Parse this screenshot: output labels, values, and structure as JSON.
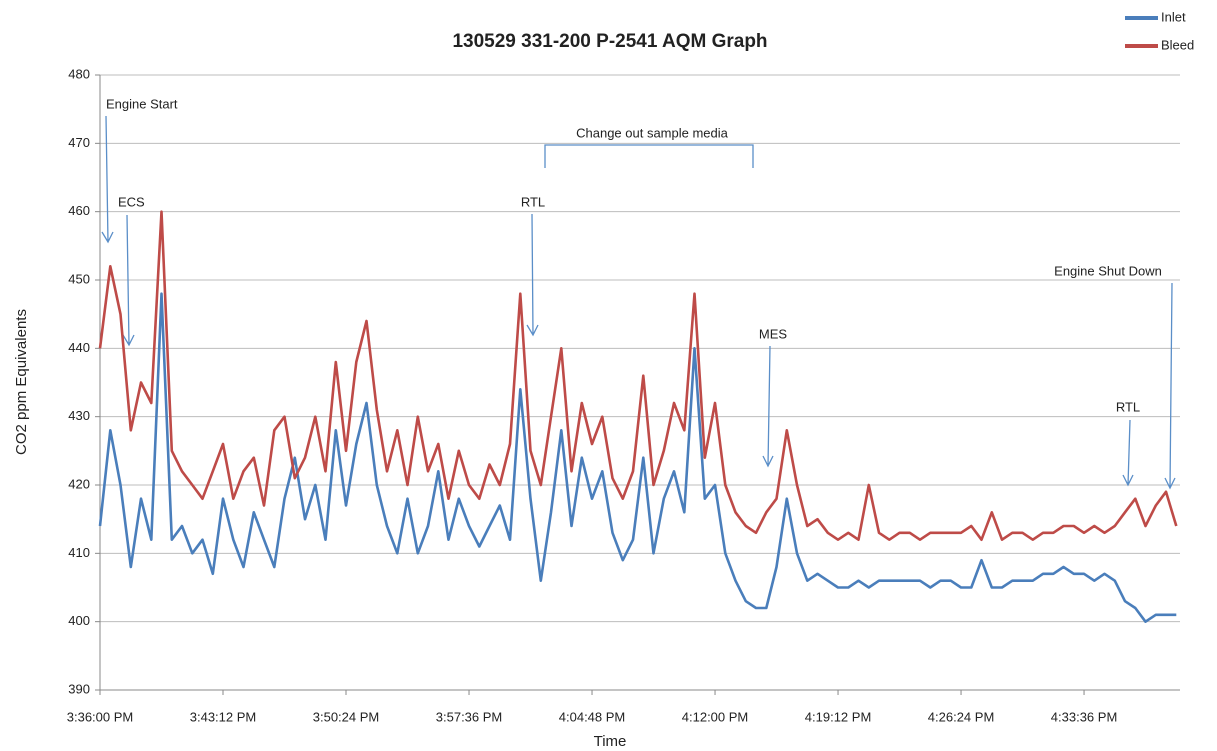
{
  "chart_data": {
    "type": "line",
    "title": "130529 331-200 P-2541 AQM Graph",
    "x_label": "Time",
    "y_label": "CO2 ppm Equivalents",
    "x": [
      "3:36:00 PM",
      "3:36:36 PM",
      "3:37:12 PM",
      "3:37:48 PM",
      "3:38:24 PM",
      "3:39:00 PM",
      "3:39:36 PM",
      "3:40:12 PM",
      "3:40:48 PM",
      "3:41:24 PM",
      "3:42:00 PM",
      "3:42:36 PM",
      "3:43:12 PM",
      "3:43:48 PM",
      "3:44:24 PM",
      "3:45:00 PM",
      "3:45:36 PM",
      "3:46:12 PM",
      "3:46:48 PM",
      "3:47:24 PM",
      "3:48:00 PM",
      "3:48:36 PM",
      "3:49:12 PM",
      "3:49:48 PM",
      "3:50:24 PM",
      "3:51:00 PM",
      "3:51:36 PM",
      "3:52:12 PM",
      "3:52:48 PM",
      "3:53:24 PM",
      "3:54:00 PM",
      "3:54:36 PM",
      "3:55:12 PM",
      "3:55:48 PM",
      "3:56:24 PM",
      "3:57:00 PM",
      "3:57:36 PM",
      "3:58:12 PM",
      "3:58:48 PM",
      "3:59:24 PM",
      "4:00:00 PM",
      "4:00:36 PM",
      "4:01:12 PM",
      "4:01:48 PM",
      "4:02:24 PM",
      "4:03:00 PM",
      "4:03:36 PM",
      "4:04:12 PM",
      "4:04:48 PM",
      "4:05:24 PM",
      "4:06:00 PM",
      "4:06:36 PM",
      "4:07:12 PM",
      "4:07:48 PM",
      "4:08:24 PM",
      "4:09:00 PM",
      "4:09:36 PM",
      "4:10:12 PM",
      "4:10:48 PM",
      "4:11:24 PM",
      "4:12:00 PM",
      "4:12:36 PM",
      "4:13:12 PM",
      "4:13:48 PM",
      "4:14:24 PM",
      "4:15:00 PM",
      "4:15:36 PM",
      "4:16:12 PM",
      "4:16:48 PM",
      "4:17:24 PM",
      "4:18:00 PM",
      "4:18:36 PM",
      "4:19:12 PM",
      "4:19:48 PM",
      "4:20:24 PM",
      "4:21:00 PM",
      "4:21:36 PM",
      "4:22:12 PM",
      "4:22:48 PM",
      "4:23:24 PM",
      "4:24:00 PM",
      "4:24:36 PM",
      "4:25:12 PM",
      "4:25:48 PM",
      "4:26:24 PM",
      "4:27:00 PM",
      "4:27:36 PM",
      "4:28:12 PM",
      "4:28:48 PM",
      "4:29:24 PM",
      "4:30:00 PM",
      "4:30:36 PM",
      "4:31:12 PM",
      "4:31:48 PM",
      "4:32:24 PM",
      "4:33:00 PM",
      "4:33:36 PM",
      "4:34:12 PM",
      "4:34:48 PM",
      "4:35:24 PM",
      "4:36:00 PM",
      "4:36:36 PM",
      "4:37:12 PM",
      "4:37:48 PM",
      "4:38:24 PM",
      "4:39:00 PM"
    ],
    "series": [
      {
        "name": "Inlet",
        "color": "#4a7ebb",
        "values": [
          414,
          428,
          420,
          408,
          418,
          412,
          448,
          412,
          414,
          410,
          412,
          407,
          418,
          412,
          408,
          416,
          412,
          408,
          418,
          424,
          415,
          420,
          412,
          428,
          417,
          426,
          432,
          420,
          414,
          410,
          418,
          410,
          414,
          422,
          412,
          418,
          414,
          411,
          414,
          417,
          412,
          434,
          418,
          406,
          416,
          428,
          414,
          424,
          418,
          422,
          413,
          409,
          412,
          424,
          410,
          418,
          422,
          416,
          440,
          418,
          420,
          410,
          406,
          403,
          402,
          402,
          408,
          418,
          410,
          406,
          407,
          406,
          405,
          405,
          406,
          405,
          406,
          406,
          406,
          406,
          406,
          405,
          406,
          406,
          405,
          405,
          409,
          405,
          405,
          406,
          406,
          406,
          407,
          407,
          408,
          407,
          407,
          406,
          407,
          406,
          403,
          402,
          400,
          401,
          401,
          401
        ]
      },
      {
        "name": "Bleed",
        "color": "#be4b48",
        "values": [
          440,
          452,
          445,
          428,
          435,
          432,
          460,
          425,
          422,
          420,
          418,
          422,
          426,
          418,
          422,
          424,
          417,
          428,
          430,
          421,
          424,
          430,
          422,
          438,
          425,
          438,
          444,
          431,
          422,
          428,
          420,
          430,
          422,
          426,
          418,
          425,
          420,
          418,
          423,
          420,
          426,
          448,
          425,
          420,
          430,
          440,
          422,
          432,
          426,
          430,
          421,
          418,
          422,
          436,
          420,
          425,
          432,
          428,
          448,
          424,
          432,
          420,
          416,
          414,
          413,
          416,
          418,
          428,
          420,
          414,
          415,
          413,
          412,
          413,
          412,
          420,
          413,
          412,
          413,
          413,
          412,
          413,
          413,
          413,
          413,
          414,
          412,
          416,
          412,
          413,
          413,
          412,
          413,
          413,
          414,
          414,
          413,
          414,
          413,
          414,
          416,
          418,
          414,
          417,
          419,
          414
        ]
      }
    ],
    "xlim": [
      "3:36:00 PM",
      "4:39:13 PM"
    ],
    "xticks": [
      "3:36:00 PM",
      "3:43:12 PM",
      "3:50:24 PM",
      "3:57:36 PM",
      "4:04:48 PM",
      "4:12:00 PM",
      "4:19:12 PM",
      "4:26:24 PM",
      "4:33:36 PM"
    ],
    "ylim": [
      390,
      480
    ],
    "yticks": [
      390,
      400,
      410,
      420,
      430,
      440,
      450,
      460,
      470,
      480
    ],
    "grid": true,
    "legend": "upper right",
    "annotations": [
      "Engine Start",
      "ECS",
      "RTL",
      "Change out sample media",
      "MES",
      "Engine Shut Down",
      "RTL"
    ]
  }
}
